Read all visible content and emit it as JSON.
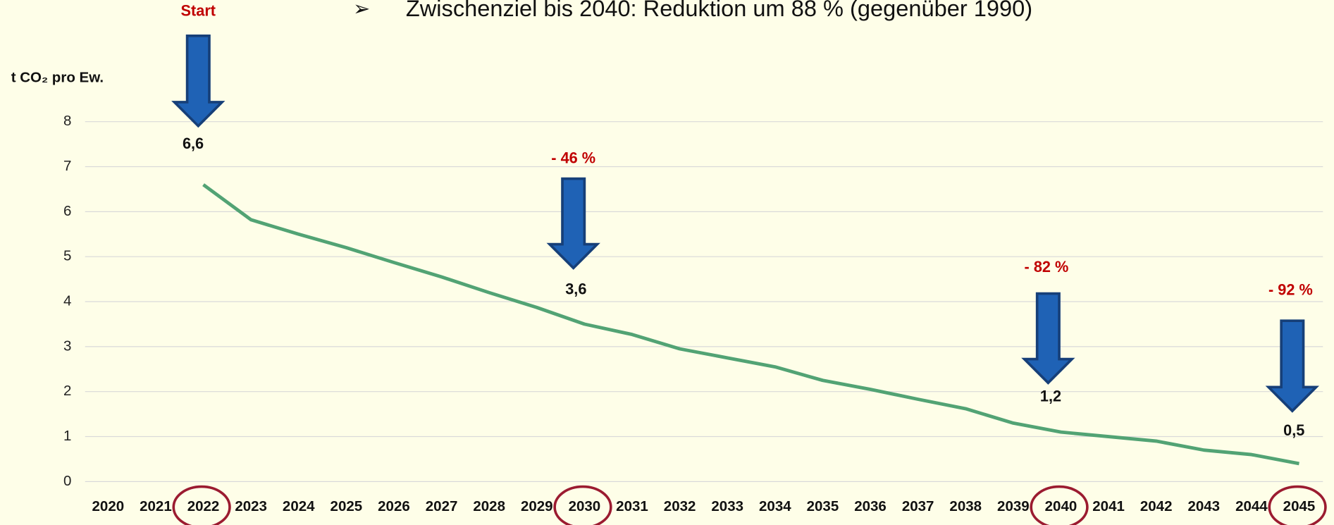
{
  "chart_data": {
    "type": "line",
    "title": "Zwischenziel bis 2040: Reduktion um 88 % (gegenüber 1990)",
    "bullet": "➢",
    "y_label": "t CO₂ pro Ew.",
    "categories": [
      "2020",
      "2021",
      "2022",
      "2023",
      "2024",
      "2025",
      "2026",
      "2027",
      "2028",
      "2029",
      "2030",
      "2031",
      "2032",
      "2033",
      "2034",
      "2035",
      "2036",
      "2037",
      "2038",
      "2039",
      "2040",
      "2041",
      "2042",
      "2043",
      "2044",
      "2045"
    ],
    "series": [
      {
        "name": "t CO₂ pro Ew.",
        "color": "#52a374",
        "values": [
          null,
          null,
          6.6,
          5.82,
          5.5,
          5.2,
          4.87,
          4.55,
          4.2,
          3.87,
          3.5,
          3.27,
          2.95,
          2.75,
          2.55,
          2.25,
          2.05,
          1.83,
          1.62,
          1.3,
          1.1,
          1.0,
          0.9,
          0.7,
          0.6,
          0.4
        ]
      }
    ],
    "ylim": [
      0,
      8
    ],
    "yticks": [
      0,
      1,
      2,
      3,
      4,
      5,
      6,
      7,
      8
    ],
    "grid": true,
    "annotations": [
      {
        "label": "Start",
        "value": "6,6"
      },
      {
        "label": "- 46 %",
        "value": "3,6"
      },
      {
        "label": "- 82 %",
        "value": "1,2"
      },
      {
        "label": "- 92 %",
        "value": "0,5"
      }
    ]
  }
}
